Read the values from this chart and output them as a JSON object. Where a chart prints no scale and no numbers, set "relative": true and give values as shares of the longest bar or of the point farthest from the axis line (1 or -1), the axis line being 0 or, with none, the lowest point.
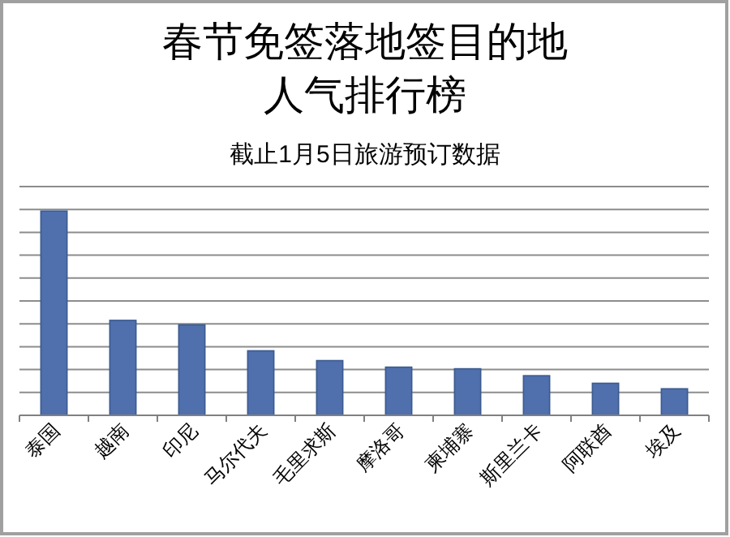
{
  "chart_data": {
    "type": "bar",
    "title": "春节免签落地签目的地人气排行榜",
    "subtitle": "截止1月5日旅游预订数据",
    "categories": [
      "泰国",
      "越南",
      "印尼",
      "马尔代夫",
      "毛里求斯",
      "摩洛哥",
      "柬埔寨",
      "斯里兰卡",
      "阿联酋",
      "埃及"
    ],
    "values": [
      1,
      0.465,
      0.443,
      0.316,
      0.268,
      0.236,
      0.228,
      0.194,
      0.157,
      0.13
    ],
    "color": "#4f6fad",
    "relative": true,
    "grid": "y"
  }
}
